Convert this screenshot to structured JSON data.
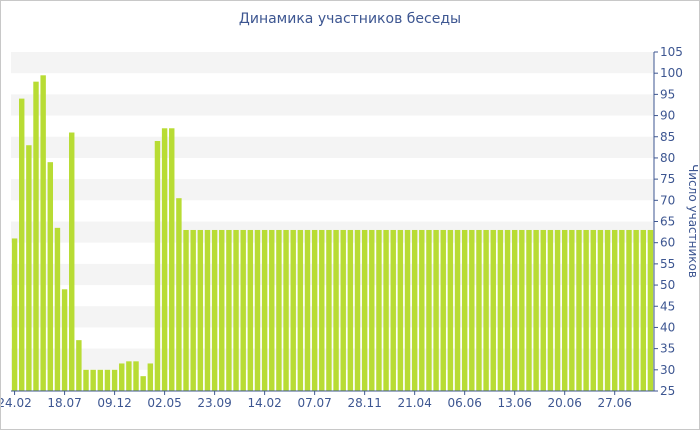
{
  "chart_data": {
    "type": "bar",
    "title": "Динамика участников беседы",
    "y_axis_label": "Число участников",
    "categories": [
      "24.02",
      null,
      null,
      null,
      null,
      null,
      null,
      "18.07",
      null,
      null,
      null,
      null,
      null,
      null,
      "09.12",
      null,
      null,
      null,
      null,
      null,
      null,
      "02.05",
      null,
      null,
      null,
      null,
      null,
      null,
      "23.09",
      null,
      null,
      null,
      null,
      null,
      null,
      "14.02",
      null,
      null,
      null,
      null,
      null,
      null,
      "07.07",
      null,
      null,
      null,
      null,
      null,
      null,
      "28.11",
      null,
      null,
      null,
      null,
      null,
      null,
      "21.04",
      null,
      null,
      null,
      null,
      null,
      null,
      "06.06",
      null,
      null,
      null,
      null,
      null,
      null,
      "13.06",
      null,
      null,
      null,
      null,
      null,
      null,
      "20.06",
      null,
      null,
      null,
      null,
      null,
      null,
      "27.06",
      null,
      null,
      null,
      null,
      null
    ],
    "values": [
      61,
      94,
      83,
      98,
      99.5,
      79,
      63.5,
      49,
      86,
      37,
      30,
      30,
      30,
      30,
      30,
      31.5,
      32,
      32,
      28.5,
      31.5,
      84,
      87,
      87,
      70.5,
      63,
      63,
      63,
      63,
      63,
      63,
      63,
      63,
      63,
      63,
      63,
      63,
      63,
      63,
      63,
      63,
      63,
      63,
      63,
      63,
      63,
      63,
      63,
      63,
      63,
      63,
      63,
      63,
      63,
      63,
      63,
      63,
      63,
      63,
      63,
      63,
      63,
      63,
      63,
      63,
      63,
      63,
      63,
      63,
      63,
      63,
      63,
      63,
      63,
      63,
      63,
      63,
      63,
      63,
      63,
      63,
      63,
      63,
      63,
      63,
      63,
      63,
      63,
      63,
      63,
      63
    ],
    "color": "#b8dc34",
    "ylim": [
      25,
      105
    ],
    "yticks": [
      25,
      30,
      35,
      40,
      45,
      50,
      55,
      60,
      65,
      70,
      75,
      80,
      85,
      90,
      95,
      100,
      105
    ],
    "y_axis_side": "right",
    "banded_grid": true
  }
}
